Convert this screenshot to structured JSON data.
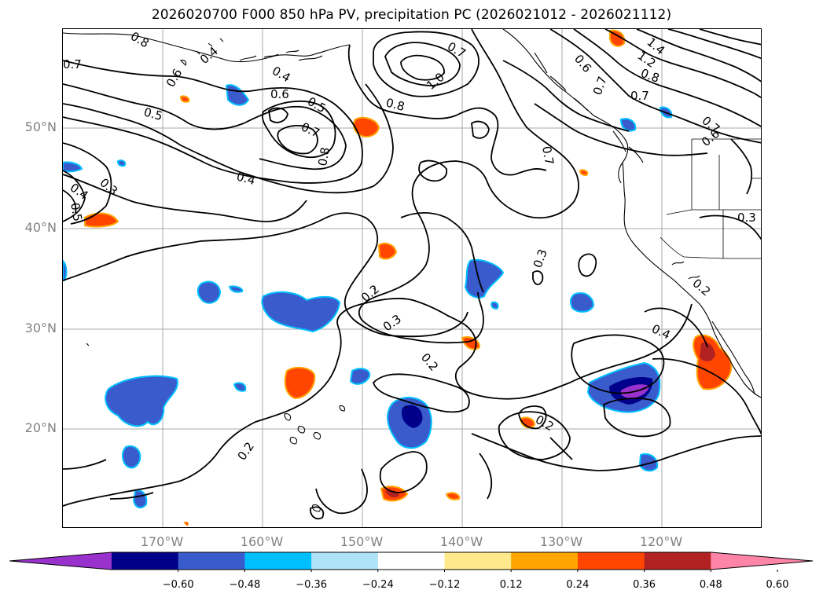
{
  "title": "2026020700 F000 850 hPa PV, precipitation PC (2026021012 - 2026021112)",
  "map": {
    "lat_labels": [
      "50°N",
      "40°N",
      "30°N",
      "20°N"
    ],
    "lon_labels": [
      "170°W",
      "160°W",
      "150°W",
      "140°W",
      "130°W",
      "120°W"
    ],
    "lon_range": [
      -180,
      -110
    ],
    "lat_range": [
      10,
      60
    ],
    "contour_labels": [
      "0.8",
      "0.7",
      "0.4",
      "0.6",
      "0.5",
      "0.4",
      "0.6",
      "0.5",
      "0.7",
      "0.8",
      "0.7",
      "1.0",
      "0.8",
      "0.6",
      "1.4",
      "1.2",
      "0.8",
      "0.7",
      "0.7",
      "0.7",
      "0.7",
      "0.6",
      "0.4",
      "0.3",
      "0.4",
      "0.5",
      "0.3",
      "0.2",
      "0.3",
      "0.2",
      "0.2",
      "0.4",
      "0.2",
      "0.2",
      "0.3"
    ]
  },
  "colorbar": {
    "ticks": [
      "−0.60",
      "−0.48",
      "−0.36",
      "−0.24",
      "−0.12",
      "0.12",
      "0.24",
      "0.36",
      "0.48",
      "0.60"
    ],
    "colors": [
      "#9932cc",
      "#00008b",
      "#3a5bcc",
      "#00bfff",
      "#aee3f7",
      "#ffffff",
      "#ffe98a",
      "#ffa500",
      "#ff4500",
      "#b22222",
      "#ff85a8"
    ]
  }
}
